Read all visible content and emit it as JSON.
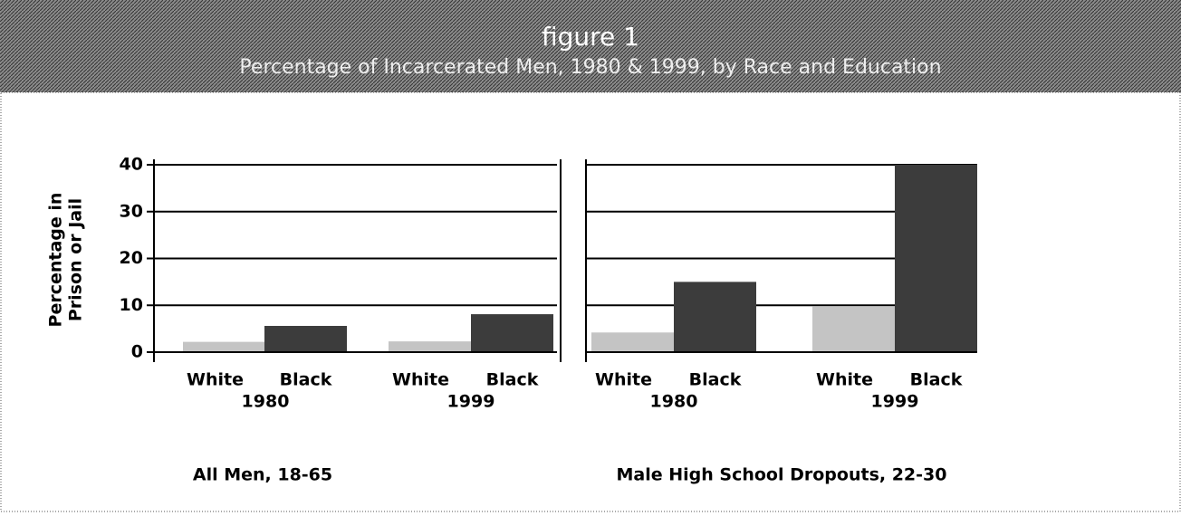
{
  "header": {
    "title": "figure 1",
    "subtitle": "Percentage of Incarcerated Men, 1980 & 1999, by Race and Education"
  },
  "ylabel": [
    "Percentage in",
    "Prison or Jail"
  ],
  "chart_data": [
    {
      "type": "bar",
      "title": "All Men, 18-65",
      "categories": [
        "White",
        "Black",
        "White",
        "Black"
      ],
      "groups": [
        "1980",
        "1999"
      ],
      "values": [
        2.2,
        5.6,
        2.3,
        8.1
      ],
      "colors": [
        "#c4c4c4",
        "#3c3c3c",
        "#c4c4c4",
        "#3c3c3c"
      ],
      "ylim": [
        0,
        40
      ],
      "yticks": [
        0,
        10,
        20,
        30,
        40
      ],
      "grid": true
    },
    {
      "type": "bar",
      "title": "Male High School Dropouts, 22-30",
      "categories": [
        "White",
        "Black",
        "White",
        "Black"
      ],
      "groups": [
        "1980",
        "1999"
      ],
      "values": [
        4.2,
        15,
        9.8,
        40
      ],
      "colors": [
        "#c4c4c4",
        "#3c3c3c",
        "#c4c4c4",
        "#3c3c3c"
      ],
      "ylim": [
        0,
        40
      ],
      "grid": true
    }
  ]
}
